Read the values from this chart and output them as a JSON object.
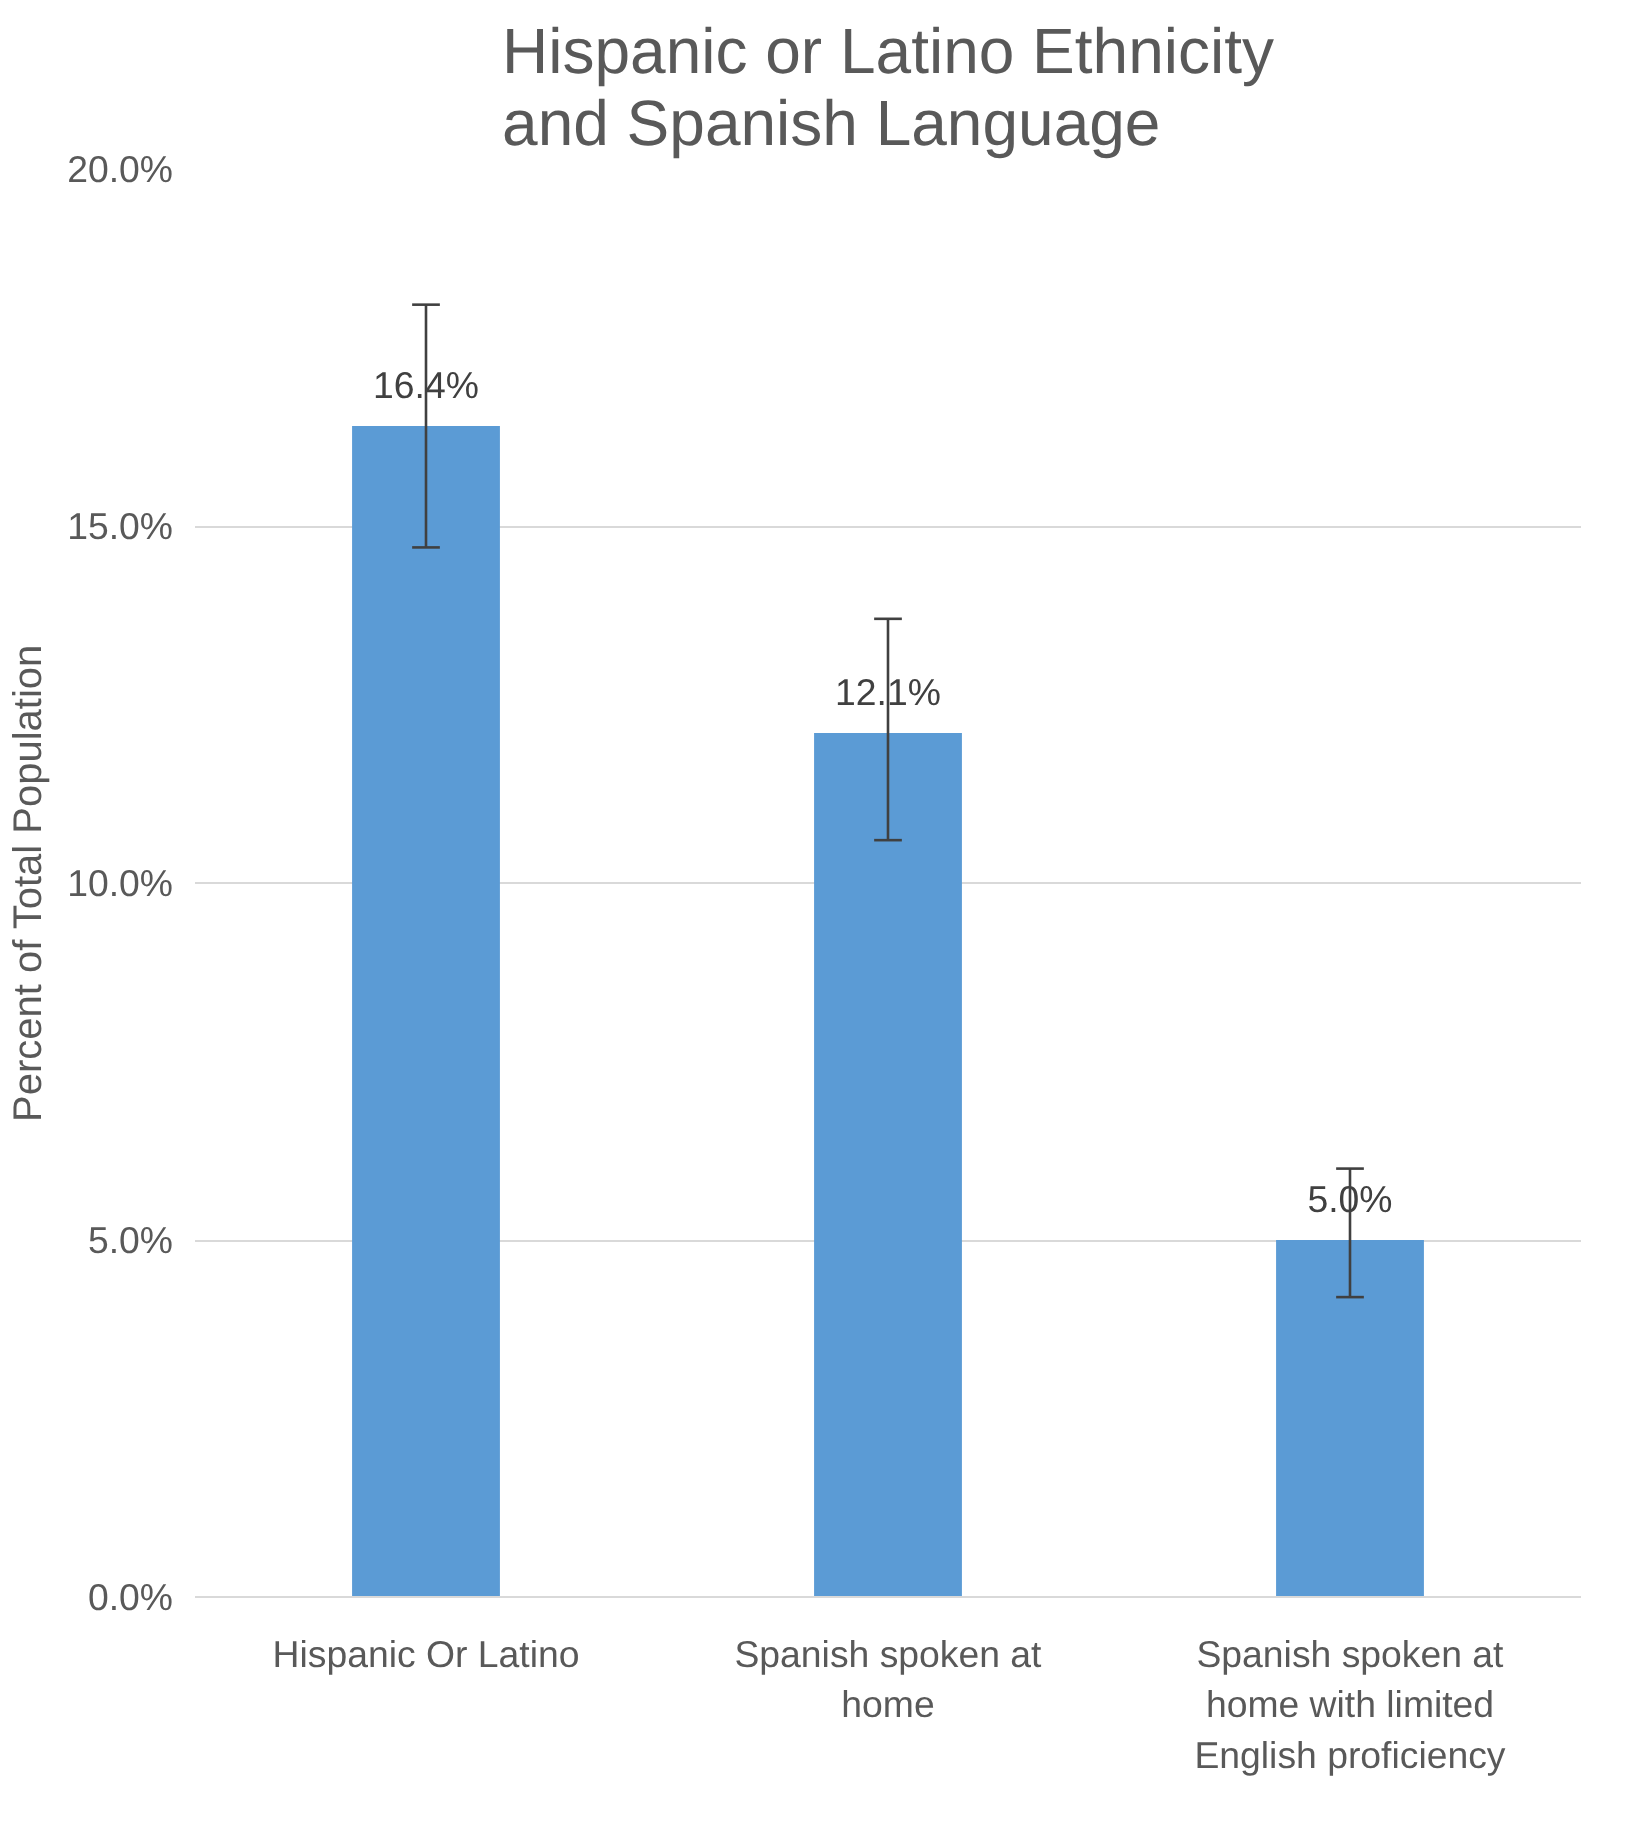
{
  "chart_data": {
    "type": "bar",
    "title": "Hispanic or Latino Ethnicity\nand Spanish Language",
    "ylabel": "Percent of Total Population",
    "categories": [
      "Hispanic Or Latino",
      "Spanish spoken at home",
      "Spanish spoken at home with limited English proficiency"
    ],
    "values": [
      16.4,
      12.1,
      5.0
    ],
    "color": "#5b9bd5",
    "errors": [
      [
        14.7,
        18.1
      ],
      [
        10.6,
        13.7
      ],
      [
        4.2,
        6.0
      ]
    ],
    "value_labels": [
      "16.4%",
      "12.1%",
      "5.0%"
    ],
    "ylim": [
      0,
      20
    ],
    "yticks": [
      {
        "value": 0,
        "label": "0.0%"
      },
      {
        "value": 5,
        "label": "5.0%"
      },
      {
        "value": 10,
        "label": "10.0%"
      },
      {
        "value": 15,
        "label": "15.0%"
      },
      {
        "value": 20,
        "label": "20.0%"
      }
    ],
    "grid": "y"
  }
}
